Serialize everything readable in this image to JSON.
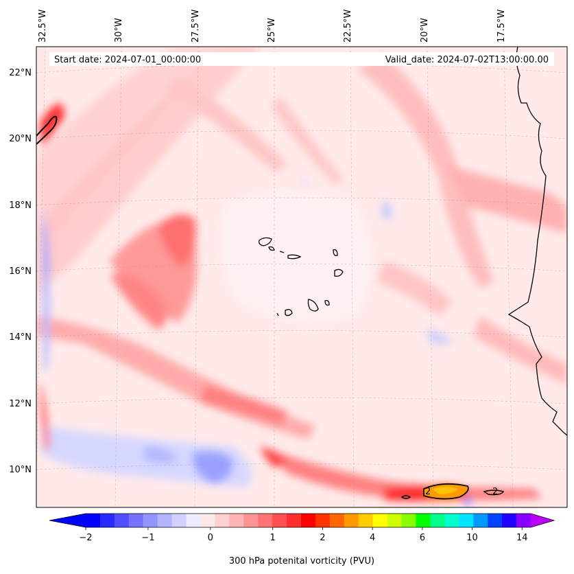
{
  "map": {
    "start_date": "Start date: 2024-07-01_00:00:00",
    "valid_date": "Valid_date: 2024-07-02T13:00:00.00",
    "lon_ticks": [
      "32.5°W",
      "30°W",
      "27.5°W",
      "25°W",
      "22.5°W",
      "20°W",
      "17.5°W"
    ],
    "lat_ticks": [
      "22°N",
      "20°N",
      "18°N",
      "16°N",
      "14°N",
      "12°N",
      "10°N"
    ],
    "contour_label": "2"
  },
  "colorbar": {
    "label": "300 hPa potenital vorticity (PVU)",
    "ticks": [
      "−2",
      "−1",
      "0",
      "1",
      "2",
      "4",
      "6",
      "10",
      "14"
    ],
    "colors": [
      "#0000ff",
      "#2a2aff",
      "#4f4fff",
      "#7373ff",
      "#9494ff",
      "#b3b3ff",
      "#d1d1ff",
      "#ededff",
      "#ffe8e8",
      "#ffd0d0",
      "#ffb4b4",
      "#ff9494",
      "#ff7373",
      "#ff5050",
      "#ff2e2e",
      "#ff0000",
      "#ff3300",
      "#ff6600",
      "#ff9900",
      "#ffcc00",
      "#ffff00",
      "#ccff00",
      "#88ff00",
      "#00ff00",
      "#00ff88",
      "#00ffcc",
      "#00e5ff",
      "#0099ff",
      "#0044ff",
      "#2200ff",
      "#8800ff"
    ],
    "extend_low": "#0000ff",
    "extend_high": "#bb00ff"
  }
}
